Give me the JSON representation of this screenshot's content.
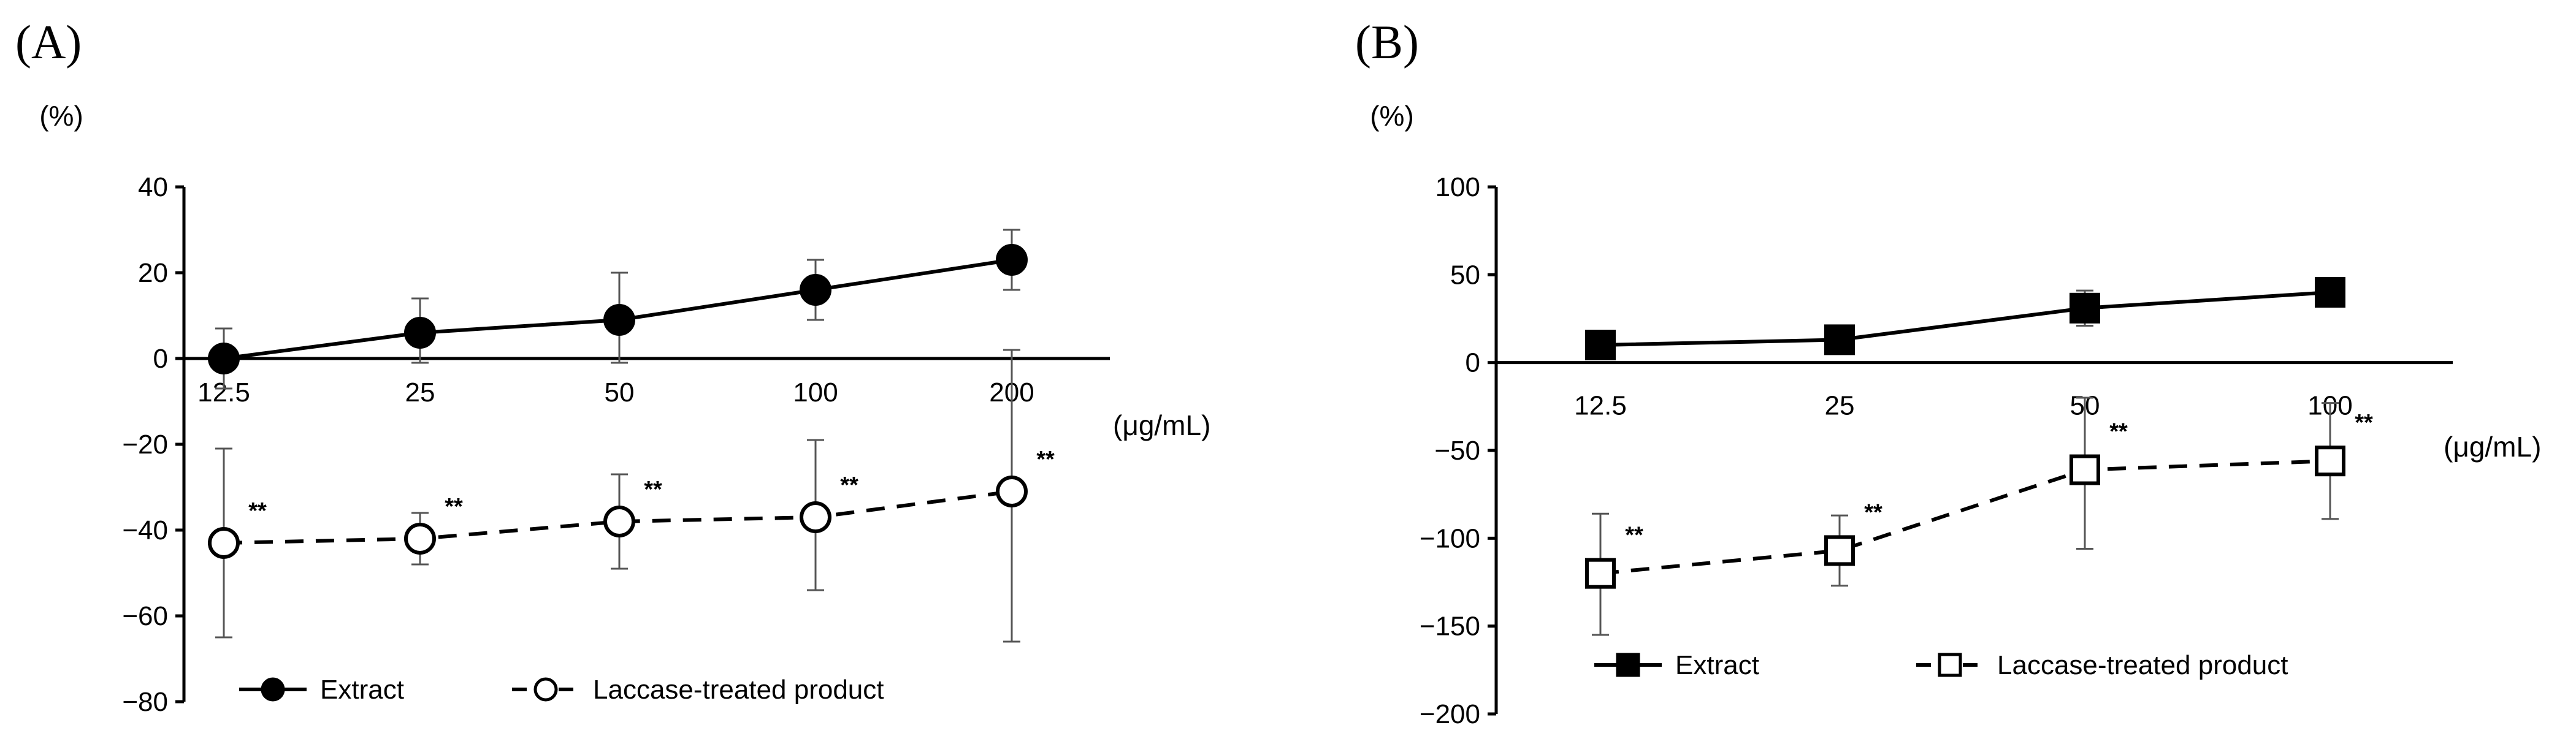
{
  "chart_data": [
    {
      "panel_label": "(A)",
      "type": "line",
      "y_unit": "(%)",
      "x_unit": "(μg/mL)",
      "categories": [
        "12.5",
        "25",
        "50",
        "100",
        "200"
      ],
      "ylim": [
        -80,
        40
      ],
      "yticks": [
        40,
        20,
        0,
        -20,
        -40,
        -60,
        -80
      ],
      "ytick_labels": [
        "40",
        "20",
        "0",
        "−20",
        "−40",
        "−60",
        "−80"
      ],
      "series": [
        {
          "name": "Extract",
          "marker": "filled-circle",
          "line_style": "solid",
          "values": [
            0,
            6,
            9,
            16,
            23
          ],
          "err_low": [
            -7,
            -1,
            -1,
            9,
            16
          ],
          "err_high": [
            7,
            14,
            20,
            23,
            30
          ],
          "sig": [
            "",
            "",
            "",
            "",
            ""
          ]
        },
        {
          "name": "Laccase-treated product",
          "marker": "open-circle",
          "line_style": "dashed",
          "values": [
            -43,
            -42,
            -38,
            -37,
            -31
          ],
          "err_low": [
            -65,
            -48,
            -49,
            -54,
            -66
          ],
          "err_high": [
            -21,
            -36,
            -27,
            -19,
            2
          ],
          "sig": [
            "**",
            "**",
            "**",
            "**",
            "**"
          ]
        }
      ]
    },
    {
      "panel_label": "(B)",
      "type": "line",
      "y_unit": "(%)",
      "x_unit": "(μg/mL)",
      "categories": [
        "12.5",
        "25",
        "50",
        "100"
      ],
      "ylim": [
        -200,
        100
      ],
      "yticks": [
        100,
        50,
        0,
        -50,
        -100,
        -150,
        -200
      ],
      "ytick_labels": [
        "100",
        "50",
        "0",
        "−50",
        "−100",
        "−150",
        "−200"
      ],
      "series": [
        {
          "name": "Extract",
          "marker": "filled-square",
          "line_style": "solid",
          "values": [
            10,
            13,
            31,
            40
          ],
          "err_low": [
            6,
            8,
            21,
            34
          ],
          "err_high": [
            14,
            18,
            41,
            46
          ],
          "sig": [
            "",
            "",
            "",
            ""
          ]
        },
        {
          "name": "Laccase-treated product",
          "marker": "open-square",
          "line_style": "dashed",
          "values": [
            -120,
            -107,
            -61,
            -56
          ],
          "err_low": [
            -155,
            -127,
            -106,
            -89
          ],
          "err_high": [
            -86,
            -87,
            -20,
            -23
          ],
          "sig": [
            "**",
            "**",
            "**",
            "**"
          ]
        }
      ]
    }
  ]
}
